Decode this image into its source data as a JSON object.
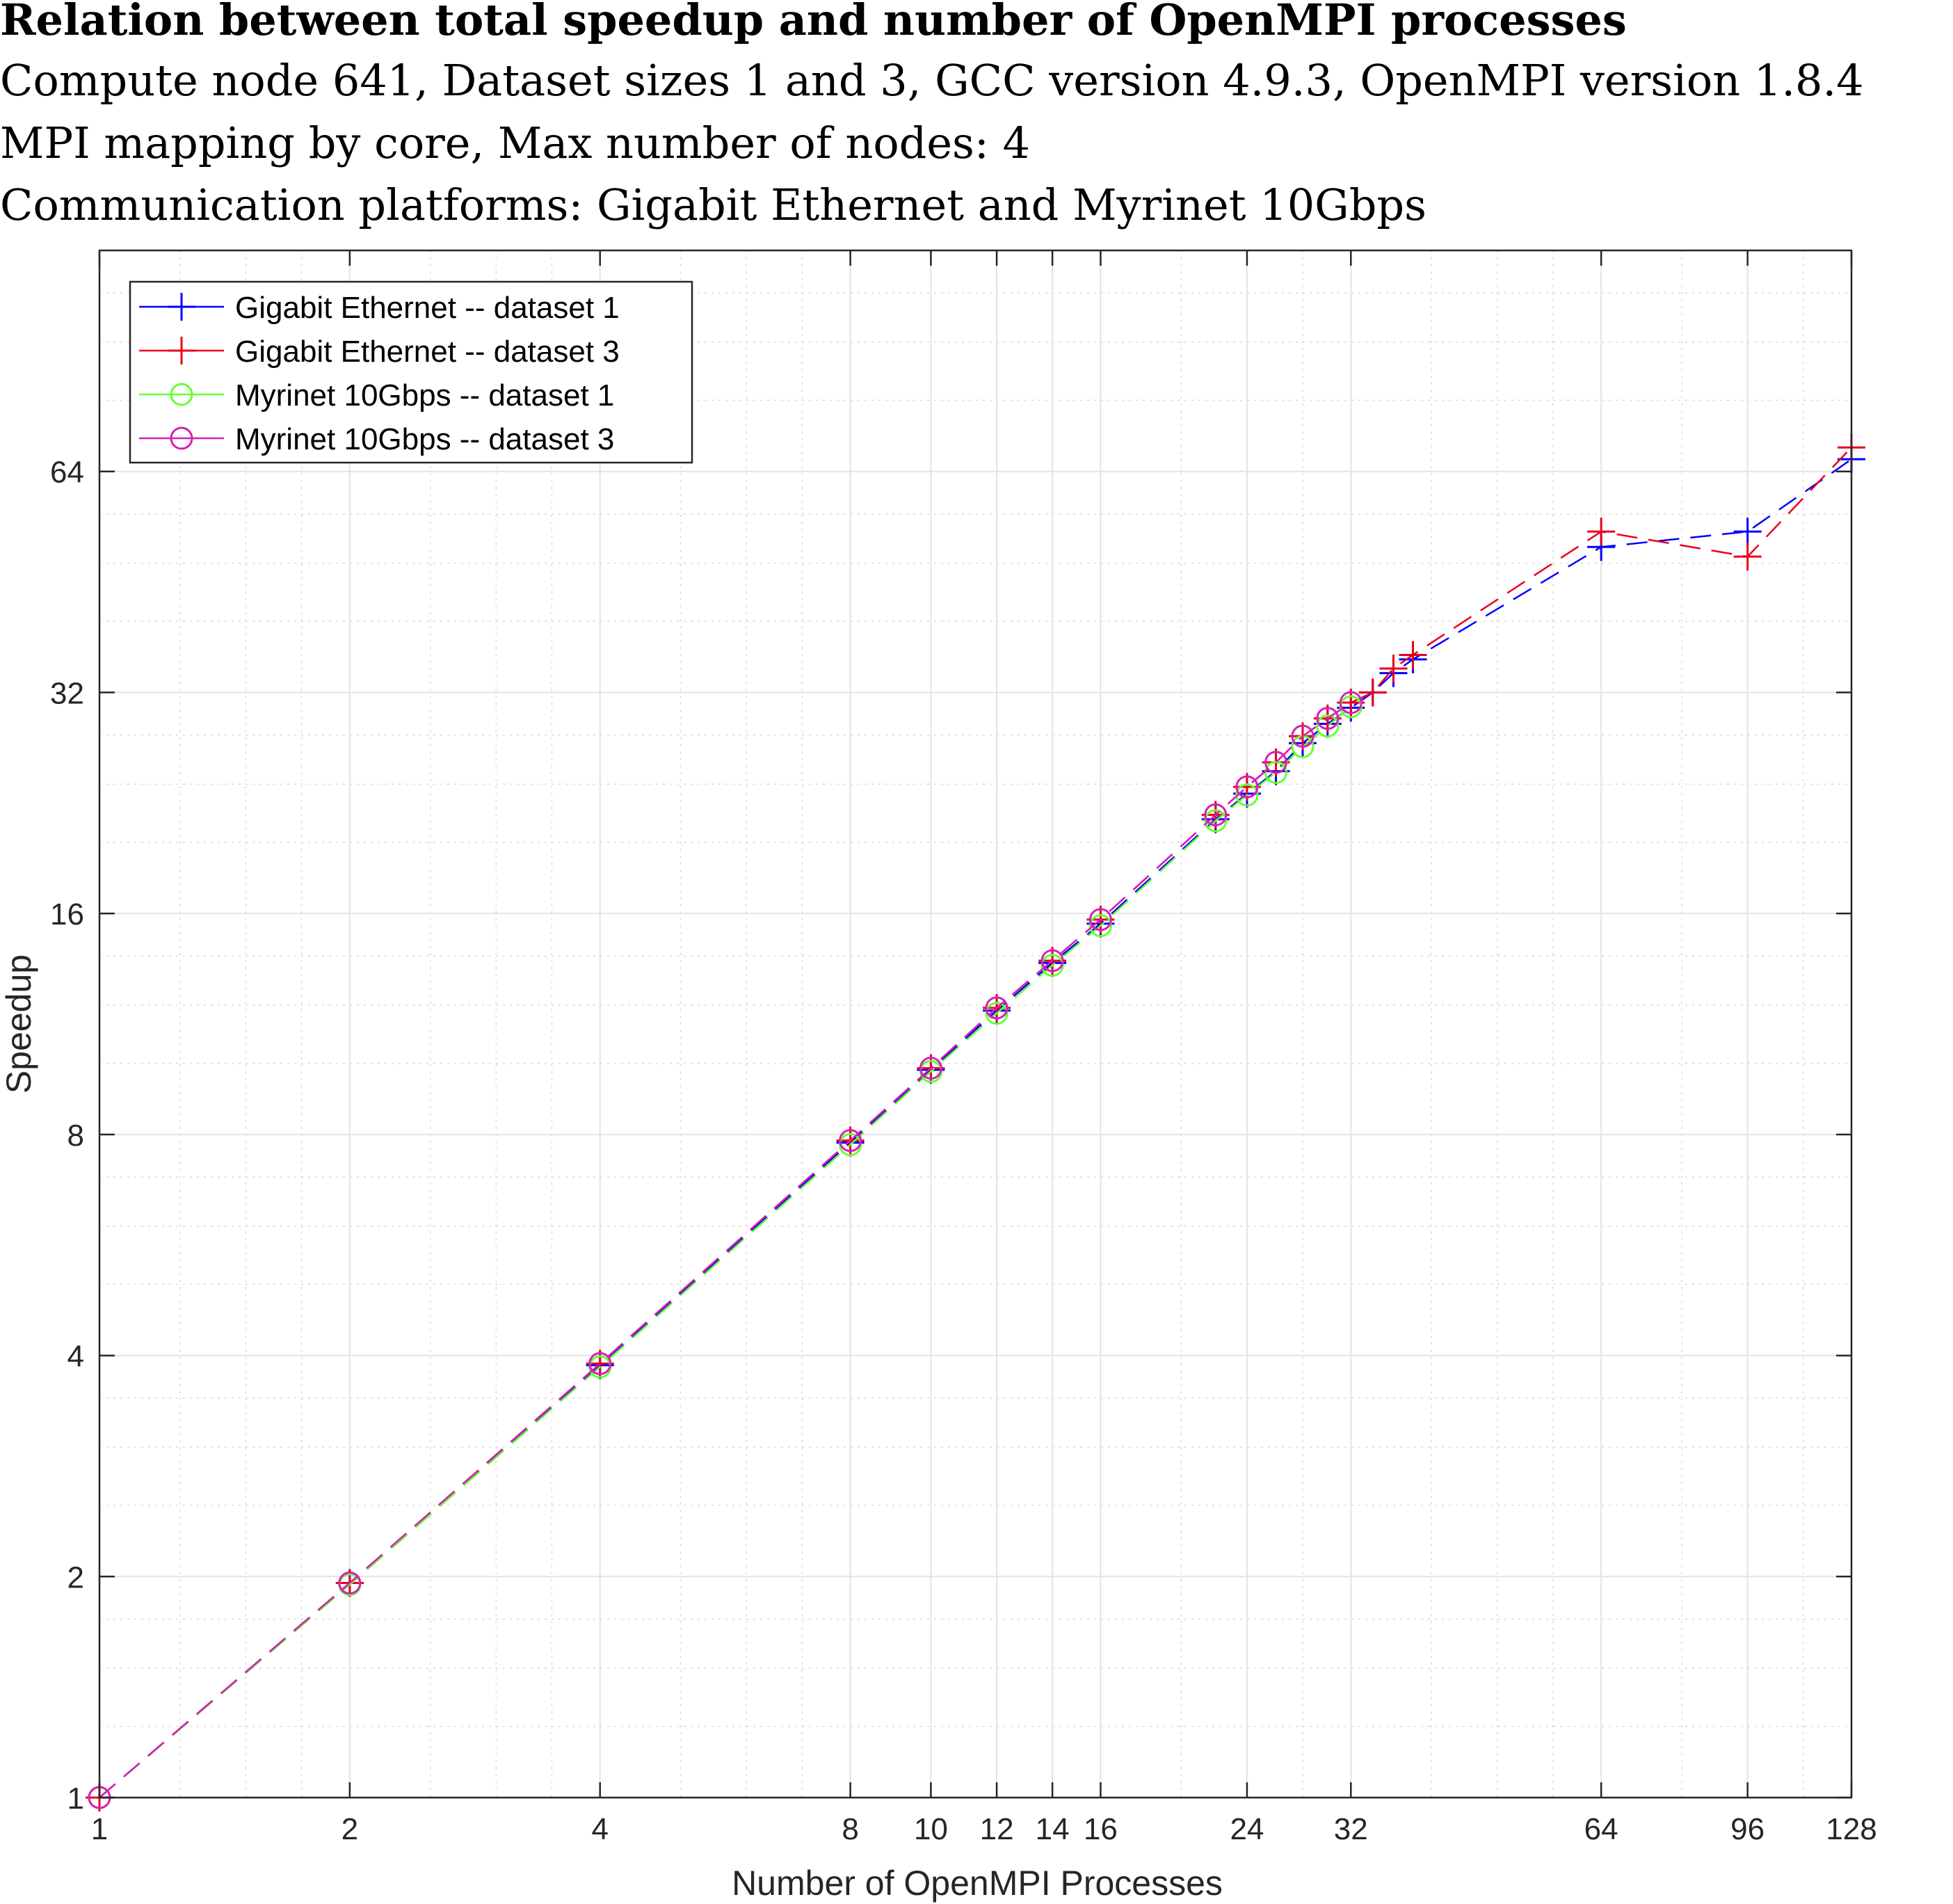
{
  "chart_data": {
    "type": "line",
    "title": "Relation between total speedup and number of OpenMPI processes",
    "subtitle_lines": [
      "Compute node 641, Dataset sizes 1 and 3, GCC version 4.9.3, OpenMPI version 1.8.4",
      "MPI mapping by core, Max number of nodes: 4",
      "Communication platforms: Gigabit Ethernet and Myrinet 10Gbps"
    ],
    "xlabel": "Number of OpenMPI Processes",
    "ylabel": "Speedup",
    "xscale": "log2",
    "yscale": "log2",
    "xlim": [
      1,
      128
    ],
    "ylim": [
      1,
      128
    ],
    "xticks": [
      1,
      2,
      4,
      8,
      10,
      12,
      14,
      16,
      24,
      32,
      64,
      96,
      128
    ],
    "xtick_labels": [
      "1",
      "2",
      "4",
      "8",
      "10",
      "12",
      "14",
      "16",
      "24",
      "32",
      "64",
      "96",
      "128"
    ],
    "yticks": [
      1,
      2,
      4,
      8,
      16,
      32,
      64
    ],
    "ytick_labels": [
      "1",
      "2",
      "4",
      "8",
      "16",
      "32",
      "64"
    ],
    "grid": true,
    "legend_position": "top-left",
    "series": [
      {
        "name": "Gigabit Ethernet -- dataset 1",
        "color": "#0000ff",
        "marker": "plus",
        "x": [
          1,
          2,
          4,
          8,
          10,
          12,
          14,
          16,
          22,
          24,
          26,
          28,
          30,
          32,
          34,
          36,
          38,
          64,
          96,
          128
        ],
        "y": [
          1,
          1.96,
          3.88,
          7.8,
          9.8,
          11.8,
          13.7,
          15.5,
          21.5,
          23.3,
          25.0,
          27.3,
          29.0,
          30.5,
          32.0,
          34.0,
          35.5,
          50.5,
          53.0,
          66.5
        ]
      },
      {
        "name": "Gigabit Ethernet -- dataset 3",
        "color": "#e8001c",
        "marker": "plus",
        "x": [
          1,
          2,
          4,
          8,
          10,
          12,
          14,
          16,
          22,
          24,
          26,
          28,
          30,
          32,
          34,
          36,
          38,
          64,
          96,
          128
        ],
        "y": [
          1,
          1.96,
          3.9,
          7.85,
          9.85,
          11.9,
          13.8,
          15.7,
          21.8,
          23.8,
          25.7,
          27.9,
          29.5,
          31.0,
          32.0,
          34.5,
          36.0,
          53.0,
          49.0,
          69.0
        ]
      },
      {
        "name": "Myrinet 10Gbps -- dataset 1",
        "color": "#66ff33",
        "marker": "circle",
        "x": [
          1,
          2,
          4,
          8,
          10,
          12,
          14,
          16,
          22,
          24,
          26,
          28,
          30,
          32
        ],
        "y": [
          1,
          1.95,
          3.86,
          7.75,
          9.75,
          11.7,
          13.6,
          15.4,
          21.4,
          23.2,
          24.9,
          27.0,
          28.8,
          30.6
        ]
      },
      {
        "name": "Myrinet 10Gbps -- dataset 3",
        "color": "#d61fb8",
        "marker": "circle",
        "x": [
          1,
          2,
          4,
          8,
          10,
          12,
          14,
          16,
          22,
          24,
          26,
          28,
          30,
          32
        ],
        "y": [
          1,
          1.96,
          3.9,
          7.85,
          9.85,
          11.9,
          13.8,
          15.7,
          21.8,
          23.8,
          25.7,
          27.9,
          29.5,
          31.0
        ]
      }
    ]
  }
}
